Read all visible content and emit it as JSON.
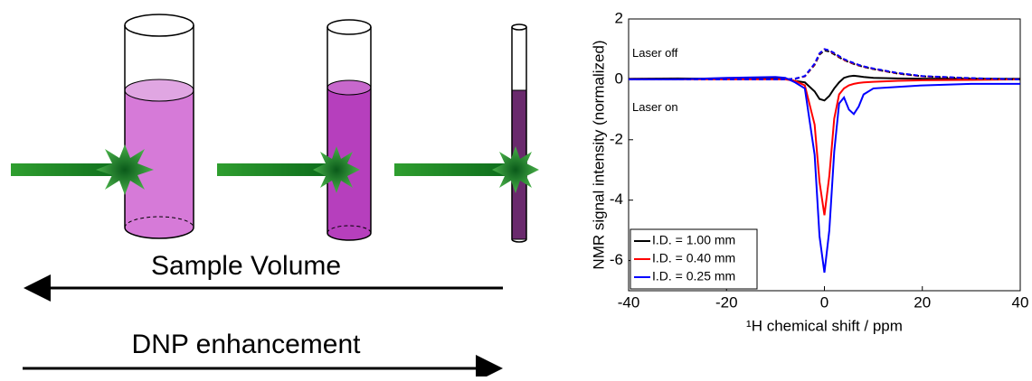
{
  "diagram": {
    "sample_volume": "Sample Volume",
    "dnp_enhancement": "DNP enhancement"
  },
  "chart_data": {
    "type": "line",
    "xlabel": "¹H chemical shift / ppm",
    "ylabel": "NMR signal intensity (normalized)",
    "annotations": [
      "Laser off",
      "Laser on"
    ],
    "x": [
      -40,
      -30,
      -20,
      -10,
      -8,
      -6,
      -4,
      -2,
      -1,
      0,
      1,
      2,
      3,
      4,
      5,
      6,
      7,
      8,
      10,
      15,
      20,
      30,
      40
    ],
    "series": [
      {
        "name": "I.D. = 1.00 mm",
        "color": "#000000",
        "dash": false,
        "values": [
          0.02,
          0.03,
          0.02,
          0.05,
          0.02,
          -0.05,
          -0.1,
          -0.4,
          -0.65,
          -0.7,
          -0.55,
          -0.3,
          -0.1,
          0.05,
          0.1,
          0.12,
          0.1,
          0.08,
          0.05,
          0.03,
          0.02,
          0.02,
          0.02
        ]
      },
      {
        "name": "I.D. = 0.40 mm",
        "color": "#ff0000",
        "dash": false,
        "values": [
          0,
          0,
          0,
          0,
          0,
          -0.05,
          -0.2,
          -1.5,
          -3.4,
          -4.5,
          -3.2,
          -1.3,
          -0.5,
          -0.3,
          -0.2,
          -0.15,
          -0.12,
          -0.1,
          -0.08,
          -0.05,
          -0.03,
          -0.02,
          0
        ]
      },
      {
        "name": "I.D. = 0.25 mm",
        "color": "#0000ff",
        "dash": false,
        "values": [
          0,
          0,
          0.05,
          0.08,
          0.05,
          -0.1,
          -0.3,
          -2.5,
          -5.2,
          -6.4,
          -5.0,
          -2.4,
          -0.8,
          -0.6,
          -1.0,
          -1.15,
          -0.9,
          -0.5,
          -0.3,
          -0.25,
          -0.2,
          -0.15,
          -0.15
        ]
      },
      {
        "color": "#000000",
        "dash": true,
        "values": [
          0,
          0,
          0,
          0,
          0,
          0.02,
          0.1,
          0.48,
          0.82,
          0.96,
          0.92,
          0.83,
          0.73,
          0.64,
          0.57,
          0.51,
          0.46,
          0.41,
          0.34,
          0.19,
          0.1,
          0.03,
          0
        ]
      },
      {
        "color": "#ff0000",
        "dash": true,
        "values": [
          0,
          0,
          0,
          0,
          0,
          0.02,
          0.1,
          0.5,
          0.85,
          1.0,
          0.95,
          0.85,
          0.75,
          0.65,
          0.58,
          0.52,
          0.47,
          0.42,
          0.35,
          0.2,
          0.1,
          0.03,
          0
        ]
      },
      {
        "color": "#0000ff",
        "dash": true,
        "values": [
          0,
          0,
          0,
          0,
          0,
          0.02,
          0.11,
          0.52,
          0.86,
          1.0,
          0.96,
          0.87,
          0.77,
          0.67,
          0.6,
          0.54,
          0.48,
          0.43,
          0.36,
          0.21,
          0.11,
          0.04,
          0
        ]
      }
    ],
    "xlim": [
      -40,
      40
    ],
    "xticks": [
      -40,
      -20,
      0,
      20,
      40
    ],
    "ylim": [
      -7,
      2
    ],
    "yticks": [
      -6,
      -4,
      -2,
      0,
      2
    ],
    "legend": "lower left",
    "grid": false
  }
}
